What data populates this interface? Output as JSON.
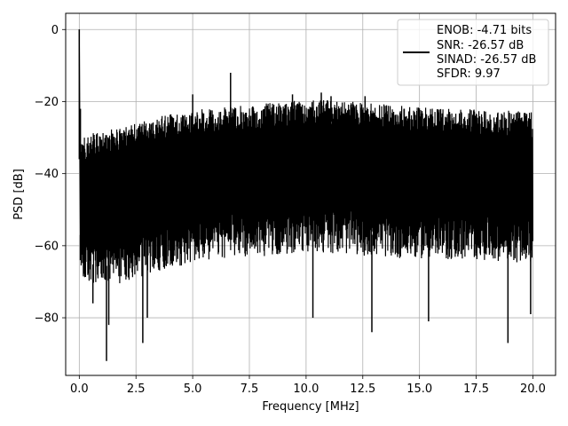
{
  "chart_data": {
    "type": "line",
    "title": "",
    "xlabel": "Frequency [MHz]",
    "ylabel": "PSD [dB]",
    "xlim": [
      -0.6,
      21
    ],
    "ylim": [
      -96,
      4.5
    ],
    "xticks": [
      0.0,
      2.5,
      5.0,
      7.5,
      10.0,
      12.5,
      15.0,
      17.5,
      20.0
    ],
    "xtick_labels": [
      "0.0",
      "2.5",
      "5.0",
      "7.5",
      "10.0",
      "12.5",
      "15.0",
      "17.5",
      "20.0"
    ],
    "yticks": [
      0,
      -20,
      -40,
      -60,
      -80
    ],
    "ytick_labels": [
      "0",
      "−20",
      "−40",
      "−60",
      "−80"
    ],
    "grid": true,
    "legend_position": "top-right",
    "line_color": "#000000",
    "legend": {
      "lines": [
        "ENOB: -4.71 bits",
        "SNR: -26.57 dB",
        "SINAD: -26.57 dB",
        "SFDR: 9.97"
      ]
    },
    "series": [
      {
        "upper_envelope": {
          "x": [
            0.1,
            0.5,
            1.0,
            2.0,
            3.0,
            4.0,
            5.0,
            6.0,
            7.0,
            8.0,
            9.0,
            10.0,
            11.0,
            12.0,
            13.0,
            14.0,
            15.0,
            16.0,
            17.0,
            18.0,
            19.0,
            20.0
          ],
          "y": [
            -30,
            -29,
            -28,
            -27,
            -25,
            -23.5,
            -22.5,
            -21.5,
            -21,
            -20.5,
            -20,
            -19.5,
            -19.5,
            -20,
            -20.5,
            -21,
            -21.5,
            -22,
            -22,
            -22.5,
            -22.5,
            -23
          ]
        },
        "lower_envelope": {
          "x": [
            0.1,
            0.5,
            1.0,
            2.0,
            3.0,
            4.0,
            5.0,
            6.0,
            7.0,
            8.0,
            9.0,
            10.0,
            11.0,
            12.0,
            13.0,
            14.0,
            15.0,
            16.0,
            17.0,
            18.0,
            19.0,
            20.0
          ],
          "y": [
            -68,
            -69,
            -70,
            -68,
            -66,
            -64,
            -63,
            -62,
            -61,
            -61,
            -60.5,
            -60,
            -60,
            -60.5,
            -61,
            -61.5,
            -61.5,
            -62,
            -62,
            -62,
            -62.5,
            -63
          ]
        },
        "peaks": [
          {
            "x": 0.0,
            "y": 0
          },
          {
            "x": 0.05,
            "y": -22
          },
          {
            "x": 5.0,
            "y": -18
          },
          {
            "x": 6.67,
            "y": -12
          },
          {
            "x": 9.4,
            "y": -18
          },
          {
            "x": 10.67,
            "y": -17.5
          },
          {
            "x": 11.1,
            "y": -18.5
          },
          {
            "x": 12.6,
            "y": -18.5
          }
        ],
        "dips": [
          {
            "x": 0.05,
            "y": -57
          },
          {
            "x": 0.6,
            "y": -76
          },
          {
            "x": 1.2,
            "y": -92
          },
          {
            "x": 1.3,
            "y": -82
          },
          {
            "x": 2.8,
            "y": -87
          },
          {
            "x": 3.0,
            "y": -80
          },
          {
            "x": 10.3,
            "y": -80
          },
          {
            "x": 12.9,
            "y": -84
          },
          {
            "x": 15.4,
            "y": -81
          },
          {
            "x": 18.9,
            "y": -87
          },
          {
            "x": 19.9,
            "y": -79
          }
        ]
      }
    ]
  }
}
